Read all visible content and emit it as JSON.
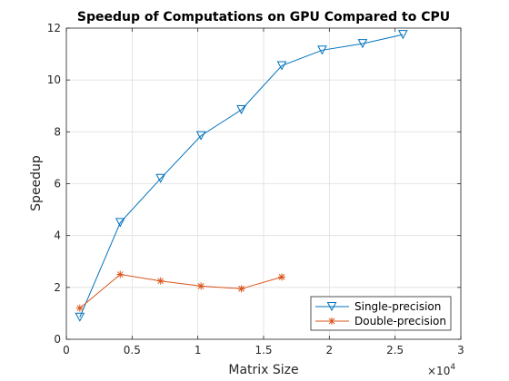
{
  "chart_data": {
    "type": "line",
    "title": "Speedup of Computations on GPU Compared to CPU",
    "xlabel": "Matrix Size",
    "ylabel": "Speedup",
    "x_multiplier": "×10",
    "x_multiplier_exponent": "4",
    "xlim": [
      0,
      30000
    ],
    "ylim": [
      0,
      12
    ],
    "xticks": [
      0,
      5000,
      10000,
      15000,
      20000,
      25000,
      30000
    ],
    "xtick_labels": [
      "0",
      "0.5",
      "1",
      "1.5",
      "2",
      "2.5",
      "3"
    ],
    "yticks": [
      0,
      2,
      4,
      6,
      8,
      10,
      12
    ],
    "ytick_labels": [
      "0",
      "2",
      "4",
      "6",
      "8",
      "10",
      "12"
    ],
    "grid": true,
    "legend_position": "bottom-right",
    "series": [
      {
        "name": "Single-precision",
        "color": "#0072bd",
        "marker": "triangle-down",
        "x": [
          1024,
          4096,
          7168,
          10240,
          13312,
          16384,
          19456,
          22528,
          25600
        ],
        "y": [
          0.85,
          4.5,
          6.2,
          7.85,
          8.85,
          10.55,
          11.15,
          11.4,
          11.75
        ]
      },
      {
        "name": "Double-precision",
        "color": "#d95319",
        "marker": "asterisk",
        "x": [
          1024,
          4096,
          7168,
          10240,
          13312,
          16384
        ],
        "y": [
          1.2,
          2.5,
          2.25,
          2.05,
          1.95,
          2.4
        ]
      }
    ]
  }
}
